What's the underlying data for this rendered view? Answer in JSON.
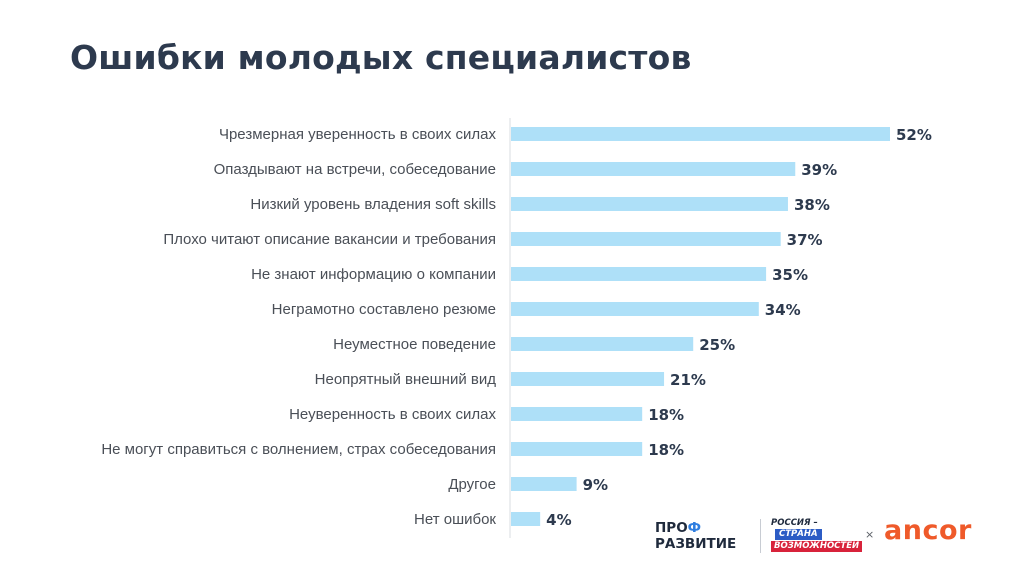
{
  "title": "Ошибки молодых специалистов",
  "chart_data": {
    "type": "bar",
    "orientation": "horizontal",
    "title": "Ошибки молодых специалистов",
    "categories": [
      "Чрезмерная уверенность в своих силах",
      "Опаздывают на встречи, собеседование",
      "Низкий уровень владения soft skills",
      "Плохо читают описание вакансии и требования",
      "Не знают информацию о компании",
      "Неграмотно составлено резюме",
      "Неуместное поведение",
      "Неопрятный внешний вид",
      "Неуверенность в своих силах",
      "Не могут справиться с волнением, страх собеседования",
      "Другое",
      "Нет ошибок"
    ],
    "values": [
      52,
      39,
      38,
      37,
      35,
      34,
      25,
      21,
      18,
      18,
      9,
      4
    ],
    "value_labels": [
      "52%",
      "39%",
      "38%",
      "37%",
      "35%",
      "34%",
      "25%",
      "21%",
      "18%",
      "18%",
      "9%",
      "4%"
    ],
    "unit": "%",
    "bar_color": "#aee0f8",
    "grid": false
  },
  "logos": {
    "prof_line1_a": "ПРО",
    "prof_line1_b": "Ф",
    "prof_line2": "РАЗВИТИЕ",
    "russia_line1": "РОССИЯ –",
    "russia_line2": "СТРАНА",
    "russia_line3": "ВОЗМОЖНОСТЕЙ",
    "separator": "×",
    "ancor": "ancor"
  }
}
